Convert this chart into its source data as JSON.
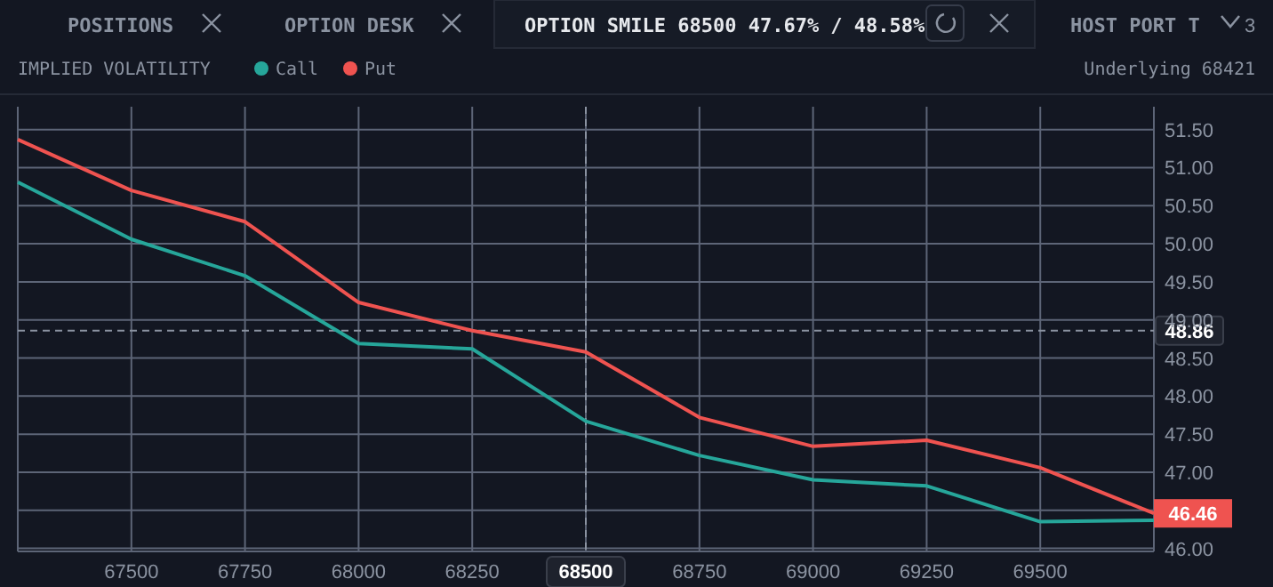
{
  "chart_data": {
    "type": "line",
    "title": "OPTION SMILE 68500 47.67% / 48.58%",
    "subtitle": "IMPLIED VOLATILITY",
    "annotations": [
      "POSITIONS",
      "OPTION DESK",
      "HOST PORT T",
      "3",
      "Underlying 68421"
    ],
    "x": [
      67250,
      67500,
      67750,
      68000,
      68250,
      68500,
      68750,
      69000,
      69250,
      69500,
      69750
    ],
    "series": [
      {
        "name": "Call",
        "color": "#26a69a",
        "values": [
          50.81,
          50.06,
          49.58,
          48.69,
          48.62,
          47.67,
          47.22,
          46.9,
          46.82,
          46.35,
          46.37
        ]
      },
      {
        "name": "Put",
        "color": "#ef5350",
        "values": [
          51.37,
          50.7,
          50.29,
          49.23,
          48.86,
          48.58,
          47.72,
          47.34,
          47.42,
          47.06,
          46.46
        ],
        "value_labels": [
          null,
          null,
          null,
          null,
          null,
          null,
          null,
          null,
          null,
          null,
          "46.46"
        ]
      }
    ],
    "xlim": [
      67250,
      69750
    ],
    "xticks": [
      67500,
      67750,
      68000,
      68250,
      68500,
      68750,
      69000,
      69250,
      69500
    ],
    "ylim": [
      45.96,
      51.8
    ],
    "yticks": [
      {
        "value": 46,
        "label": "46.00"
      },
      {
        "value": 46.5,
        "label": null
      },
      {
        "value": 47,
        "label": "47.00"
      },
      {
        "value": 47.5,
        "label": "47.50"
      },
      {
        "value": 48,
        "label": "48.00"
      },
      {
        "value": 48.5,
        "label": "48.50"
      },
      {
        "value": 49,
        "label": "49.00"
      },
      {
        "value": 49.5,
        "label": "49.50"
      },
      {
        "value": 50,
        "label": "50.00"
      },
      {
        "value": 50.5,
        "label": "50.50"
      },
      {
        "value": 51,
        "label": "51.00"
      },
      {
        "value": 51.5,
        "label": "51.50"
      }
    ],
    "ref_lines": [
      {
        "axis": "y",
        "value": 48.86,
        "label": "48.86",
        "line_style": "dashed"
      },
      {
        "axis": "x",
        "value": 68500,
        "line_style": "dashed"
      }
    ],
    "grid": true,
    "legend": "top left",
    "marker": "none",
    "line_style": "solid"
  }
}
